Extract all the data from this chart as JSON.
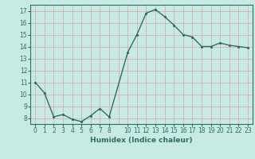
{
  "x": [
    0,
    1,
    2,
    3,
    4,
    5,
    6,
    7,
    8,
    10,
    11,
    12,
    13,
    14,
    15,
    16,
    17,
    18,
    19,
    20,
    21,
    22,
    23
  ],
  "y": [
    11.0,
    10.1,
    8.1,
    8.3,
    7.9,
    7.7,
    8.2,
    8.8,
    8.1,
    13.5,
    15.0,
    16.8,
    17.1,
    16.5,
    15.8,
    15.0,
    14.8,
    14.0,
    14.0,
    14.3,
    14.1,
    14.0,
    13.9
  ],
  "line_color": "#2d6e62",
  "marker_color": "#2d6e62",
  "bg_color": "#c8eae5",
  "grid_color": "#e0a0a0",
  "xlabel": "Humidex (Indice chaleur)",
  "ylim": [
    7.5,
    17.5
  ],
  "yticks": [
    8,
    9,
    10,
    11,
    12,
    13,
    14,
    15,
    16,
    17
  ],
  "xtick_positions": [
    0,
    1,
    2,
    3,
    4,
    5,
    6,
    7,
    8,
    10,
    11,
    12,
    13,
    14,
    15,
    16,
    17,
    18,
    19,
    20,
    21,
    22,
    23
  ],
  "xtick_labels": [
    "0",
    "1",
    "2",
    "3",
    "4",
    "5",
    "6",
    "7",
    "8",
    "10",
    "11",
    "12",
    "13",
    "14",
    "15",
    "16",
    "17",
    "18",
    "19",
    "20",
    "21",
    "22",
    "23"
  ],
  "xlim": [
    -0.5,
    23.5
  ],
  "linewidth": 1.0,
  "markersize": 2.5,
  "tick_fontsize": 5.5,
  "xlabel_fontsize": 6.5
}
